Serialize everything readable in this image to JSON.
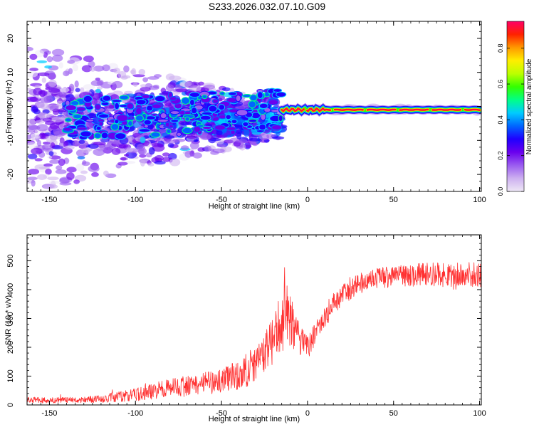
{
  "title": "S233.2026.032.07.10.G09",
  "chart_data": [
    {
      "type": "heatmap",
      "xlabel": "Height of straight line (km)",
      "ylabel": "Frequency (Hz)",
      "xlim": [
        -163,
        101
      ],
      "ylim": [
        -25,
        25
      ],
      "x_ticks": [
        -150,
        -100,
        -50,
        0,
        50,
        100
      ],
      "y_ticks": [
        -20,
        -10,
        0,
        10,
        20
      ],
      "colorbar": {
        "label": "Normalized spectral amplitude",
        "range": [
          0.0,
          0.95
        ],
        "ticks": [
          0.0,
          0.2,
          0.4,
          0.6,
          0.8
        ],
        "colors": [
          "#eee8f6",
          "#cdb0f0",
          "#9a5cf0",
          "#6a00ee",
          "#1f00ff",
          "#0066ff",
          "#00ccff",
          "#00ff88",
          "#33ff00",
          "#bbff00",
          "#ffee00",
          "#ff9900",
          "#ff2200",
          "#ff0066"
        ]
      },
      "ridge": {
        "x_range": [
          -15,
          100
        ],
        "frequency_hz": -1,
        "amplitude": 0.9
      },
      "scatter_region": {
        "x_range": [
          -163,
          -15
        ],
        "center_frequency_hz": -4,
        "frequency_spread_hz": 22
      }
    },
    {
      "type": "line",
      "xlabel": "Height of straight line (km)",
      "ylabel": "SNR (10 * v/v)",
      "xlim": [
        -163,
        101
      ],
      "ylim": [
        0,
        590
      ],
      "x_ticks": [
        -150,
        -100,
        -50,
        0,
        50,
        100
      ],
      "y_ticks": [
        0,
        100,
        200,
        300,
        400,
        500
      ],
      "series": [
        {
          "name": "SNR",
          "color": "#ff3030",
          "x": [
            -163,
            -150,
            -140,
            -130,
            -120,
            -110,
            -100,
            -90,
            -80,
            -70,
            -60,
            -50,
            -40,
            -30,
            -20,
            -15,
            -12,
            -10,
            -5,
            0,
            5,
            10,
            15,
            20,
            30,
            40,
            50,
            60,
            70,
            80,
            90,
            100
          ],
          "values": [
            18,
            16,
            18,
            17,
            22,
            28,
            35,
            48,
            58,
            65,
            75,
            85,
            105,
            140,
            220,
            290,
            330,
            300,
            230,
            200,
            255,
            305,
            350,
            385,
            420,
            440,
            445,
            450,
            455,
            450,
            455,
            450
          ],
          "noise_amplitude": [
            10,
            10,
            10,
            10,
            14,
            18,
            22,
            28,
            32,
            36,
            40,
            45,
            55,
            65,
            80,
            110,
            140,
            95,
            55,
            45,
            40,
            40,
            40,
            38,
            36,
            35,
            38,
            40,
            40,
            42,
            42,
            42
          ]
        }
      ]
    }
  ]
}
